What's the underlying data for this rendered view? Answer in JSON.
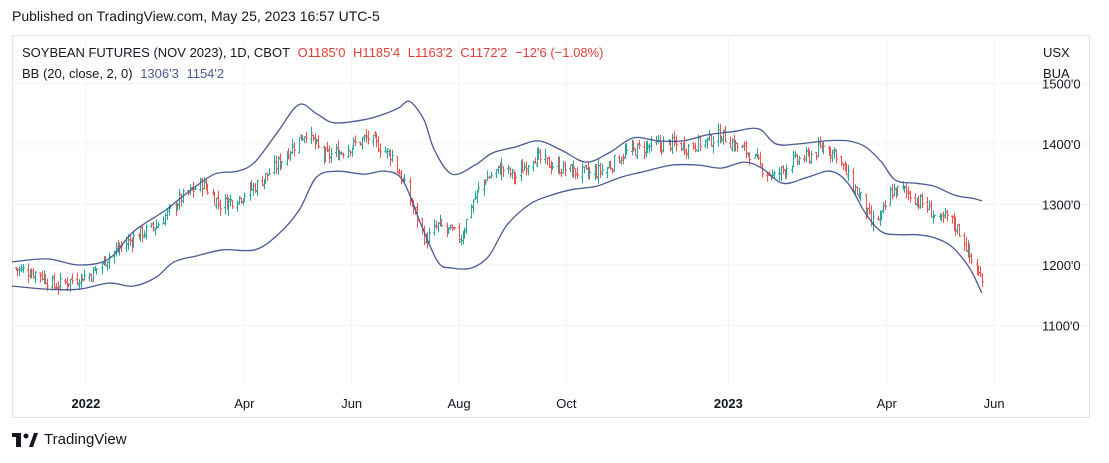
{
  "header": {
    "published": "Published on TradingView.com, May 25, 2023 16:57 UTC-5"
  },
  "legend": {
    "symbol": "SOYBEAN FUTURES (NOV 2023), 1D, CBOT",
    "open": "O1185'0",
    "high": "H1185'4",
    "low": "L1163'2",
    "close": "C1172'2",
    "change": "−12'6 (−1.08%)",
    "bb_label": "BB (20, close, 2, 0)",
    "bb_upper": "1306'3",
    "bb_lower": "1154'2"
  },
  "units": {
    "currency": "USX",
    "unit": "BUA"
  },
  "footer": {
    "brand": "TradingView"
  },
  "colors": {
    "up": "#26a69a",
    "down": "#ef5350",
    "band": "#4a5a94",
    "grid": "#f0f3fa"
  },
  "chart_data": {
    "type": "ohlc",
    "title": "SOYBEAN FUTURES (NOV 2023), 1D, CBOT",
    "ylim": [
      1000,
      1580
    ],
    "yticks": [
      {
        "value": 1500,
        "label": "1500'0"
      },
      {
        "value": 1400,
        "label": "1400'0"
      },
      {
        "value": 1300,
        "label": "1300'0"
      },
      {
        "value": 1200,
        "label": "1200'0"
      },
      {
        "value": 1100,
        "label": "1100'0"
      }
    ],
    "x_start": "2021-11-20",
    "x_end": "2023-06-14",
    "xticks": [
      {
        "date": "2022-01-01",
        "label": "2022",
        "bold": true
      },
      {
        "date": "2022-04-01",
        "label": "Apr",
        "bold": false
      },
      {
        "date": "2022-06-01",
        "label": "Jun",
        "bold": false
      },
      {
        "date": "2022-08-01",
        "label": "Aug",
        "bold": false
      },
      {
        "date": "2022-10-01",
        "label": "Oct",
        "bold": false
      },
      {
        "date": "2023-01-01",
        "label": "2023",
        "bold": true
      },
      {
        "date": "2023-04-01",
        "label": "Apr",
        "bold": false
      },
      {
        "date": "2023-06-01",
        "label": "Jun",
        "bold": false
      }
    ],
    "close_path": [
      [
        "2021-11-20",
        1195
      ],
      [
        "2021-12-06",
        1185
      ],
      [
        "2021-12-14",
        1165
      ],
      [
        "2021-12-24",
        1175
      ],
      [
        "2022-01-04",
        1185
      ],
      [
        "2022-01-14",
        1215
      ],
      [
        "2022-01-28",
        1245
      ],
      [
        "2022-02-10",
        1265
      ],
      [
        "2022-02-24",
        1310
      ],
      [
        "2022-03-08",
        1335
      ],
      [
        "2022-03-18",
        1300
      ],
      [
        "2022-03-28",
        1310
      ],
      [
        "2022-04-07",
        1330
      ],
      [
        "2022-04-18",
        1360
      ],
      [
        "2022-04-28",
        1395
      ],
      [
        "2022-05-06",
        1420
      ],
      [
        "2022-05-16",
        1380
      ],
      [
        "2022-05-24",
        1385
      ],
      [
        "2022-06-03",
        1400
      ],
      [
        "2022-06-10",
        1410
      ],
      [
        "2022-06-17",
        1395
      ],
      [
        "2022-06-24",
        1380
      ],
      [
        "2022-07-01",
        1330
      ],
      [
        "2022-07-07",
        1285
      ],
      [
        "2022-07-13",
        1240
      ],
      [
        "2022-07-20",
        1265
      ],
      [
        "2022-07-27",
        1255
      ],
      [
        "2022-08-02",
        1245
      ],
      [
        "2022-08-08",
        1300
      ],
      [
        "2022-08-15",
        1340
      ],
      [
        "2022-08-25",
        1360
      ],
      [
        "2022-09-02",
        1345
      ],
      [
        "2022-09-12",
        1380
      ],
      [
        "2022-09-22",
        1365
      ],
      [
        "2022-10-04",
        1355
      ],
      [
        "2022-10-14",
        1350
      ],
      [
        "2022-10-24",
        1360
      ],
      [
        "2022-11-03",
        1385
      ],
      [
        "2022-11-15",
        1395
      ],
      [
        "2022-11-28",
        1400
      ],
      [
        "2022-12-09",
        1395
      ],
      [
        "2022-12-20",
        1405
      ],
      [
        "2022-12-28",
        1415
      ],
      [
        "2023-01-06",
        1395
      ],
      [
        "2023-01-13",
        1385
      ],
      [
        "2023-01-20",
        1360
      ],
      [
        "2023-01-27",
        1345
      ],
      [
        "2023-02-06",
        1370
      ],
      [
        "2023-02-16",
        1380
      ],
      [
        "2023-02-24",
        1395
      ],
      [
        "2023-03-03",
        1385
      ],
      [
        "2023-03-10",
        1345
      ],
      [
        "2023-03-17",
        1310
      ],
      [
        "2023-03-23",
        1270
      ],
      [
        "2023-03-29",
        1280
      ],
      [
        "2023-04-03",
        1320
      ],
      [
        "2023-04-10",
        1325
      ],
      [
        "2023-04-17",
        1310
      ],
      [
        "2023-04-24",
        1295
      ],
      [
        "2023-05-01",
        1270
      ],
      [
        "2023-05-05",
        1280
      ],
      [
        "2023-05-10",
        1265
      ],
      [
        "2023-05-15",
        1240
      ],
      [
        "2023-05-19",
        1205
      ],
      [
        "2023-05-22",
        1190
      ],
      [
        "2023-05-25",
        1172
      ]
    ],
    "bb_upper": [
      [
        "2021-11-20",
        1205
      ],
      [
        "2021-12-10",
        1210
      ],
      [
        "2021-12-28",
        1200
      ],
      [
        "2022-01-14",
        1210
      ],
      [
        "2022-01-28",
        1255
      ],
      [
        "2022-02-15",
        1290
      ],
      [
        "2022-02-28",
        1320
      ],
      [
        "2022-03-15",
        1350
      ],
      [
        "2022-03-28",
        1355
      ],
      [
        "2022-04-07",
        1370
      ],
      [
        "2022-04-20",
        1420
      ],
      [
        "2022-05-02",
        1465
      ],
      [
        "2022-05-12",
        1450
      ],
      [
        "2022-05-22",
        1435
      ],
      [
        "2022-06-08",
        1440
      ],
      [
        "2022-06-20",
        1450
      ],
      [
        "2022-06-28",
        1460
      ],
      [
        "2022-07-04",
        1470
      ],
      [
        "2022-07-12",
        1440
      ],
      [
        "2022-07-18",
        1390
      ],
      [
        "2022-07-28",
        1350
      ],
      [
        "2022-08-10",
        1365
      ],
      [
        "2022-08-20",
        1385
      ],
      [
        "2022-09-02",
        1395
      ],
      [
        "2022-09-15",
        1405
      ],
      [
        "2022-09-28",
        1390
      ],
      [
        "2022-10-12",
        1370
      ],
      [
        "2022-10-25",
        1385
      ],
      [
        "2022-11-08",
        1410
      ],
      [
        "2022-11-22",
        1405
      ],
      [
        "2022-12-06",
        1405
      ],
      [
        "2022-12-20",
        1415
      ],
      [
        "2023-01-03",
        1420
      ],
      [
        "2023-01-18",
        1425
      ],
      [
        "2023-01-28",
        1400
      ],
      [
        "2023-02-10",
        1400
      ],
      [
        "2023-02-25",
        1405
      ],
      [
        "2023-03-10",
        1405
      ],
      [
        "2023-03-20",
        1395
      ],
      [
        "2023-03-29",
        1370
      ],
      [
        "2023-04-06",
        1340
      ],
      [
        "2023-04-18",
        1335
      ],
      [
        "2023-04-28",
        1330
      ],
      [
        "2023-05-10",
        1315
      ],
      [
        "2023-05-20",
        1310
      ],
      [
        "2023-05-25",
        1306
      ]
    ],
    "bb_lower": [
      [
        "2021-11-20",
        1165
      ],
      [
        "2021-12-10",
        1160
      ],
      [
        "2021-12-28",
        1160
      ],
      [
        "2022-01-14",
        1170
      ],
      [
        "2022-01-28",
        1165
      ],
      [
        "2022-02-10",
        1180
      ],
      [
        "2022-02-20",
        1205
      ],
      [
        "2022-03-05",
        1215
      ],
      [
        "2022-03-20",
        1225
      ],
      [
        "2022-04-07",
        1225
      ],
      [
        "2022-04-20",
        1250
      ],
      [
        "2022-05-02",
        1290
      ],
      [
        "2022-05-12",
        1345
      ],
      [
        "2022-05-24",
        1355
      ],
      [
        "2022-06-08",
        1350
      ],
      [
        "2022-06-20",
        1355
      ],
      [
        "2022-06-30",
        1340
      ],
      [
        "2022-07-10",
        1270
      ],
      [
        "2022-07-20",
        1205
      ],
      [
        "2022-07-28",
        1195
      ],
      [
        "2022-08-08",
        1195
      ],
      [
        "2022-08-18",
        1215
      ],
      [
        "2022-08-28",
        1265
      ],
      [
        "2022-09-10",
        1300
      ],
      [
        "2022-09-22",
        1315
      ],
      [
        "2022-10-05",
        1325
      ],
      [
        "2022-10-18",
        1330
      ],
      [
        "2022-11-01",
        1345
      ],
      [
        "2022-11-15",
        1355
      ],
      [
        "2022-11-30",
        1365
      ],
      [
        "2022-12-15",
        1365
      ],
      [
        "2022-12-28",
        1360
      ],
      [
        "2023-01-10",
        1370
      ],
      [
        "2023-01-20",
        1360
      ],
      [
        "2023-02-01",
        1335
      ],
      [
        "2023-02-15",
        1345
      ],
      [
        "2023-02-28",
        1355
      ],
      [
        "2023-03-10",
        1335
      ],
      [
        "2023-03-20",
        1285
      ],
      [
        "2023-03-29",
        1255
      ],
      [
        "2023-04-08",
        1250
      ],
      [
        "2023-04-18",
        1250
      ],
      [
        "2023-04-28",
        1245
      ],
      [
        "2023-05-08",
        1230
      ],
      [
        "2023-05-18",
        1195
      ],
      [
        "2023-05-25",
        1154
      ]
    ],
    "last": {
      "open": 1185.0,
      "high": 1185.5,
      "low": 1163.25,
      "close": 1172.25
    }
  }
}
